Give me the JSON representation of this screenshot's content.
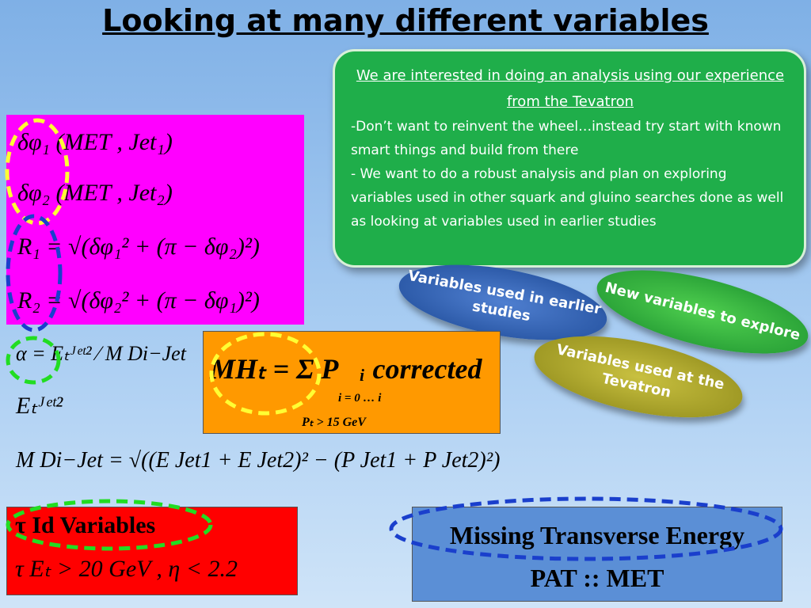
{
  "title": "Looking at many different variables",
  "info_box": {
    "heading": "We are interested in doing an analysis using our experience from the Tevatron",
    "points": [
      "-Don’t want to reinvent the wheel…instead try start with known smart things and build from there",
      "- We want to do a robust analysis and plan on exploring variables used in other squark and gluino searches done as well as looking at variables used in earlier studies"
    ]
  },
  "bubbles": [
    "Variables used in earlier studies",
    "New variables to explore",
    "Variables used at the Tevatron"
  ],
  "angle_formulas": [
    "δφ₁ (MET , Jet₁)",
    "δφ₂ (MET , Jet₂)",
    "R₁ = √(δφ₁² + (π − δφ₂)²)",
    "R₂ = √(δφ₂² + (π − δφ₁)²)"
  ],
  "alpha_formula": "α = Eₜᴶᵉᵗ² ⁄ M Di−Jet",
  "et_formula": "Eₜᴶᵉᵗ²",
  "mht": {
    "formula": "MHₜ = Σ P⃗ᵢ corrected",
    "sum_limits": "i = 0 … i",
    "condition": "Pₜ > 15 GeV"
  },
  "mass_formula": "M Di−Jet = √((E Jet1 + E Jet2)² − (P Jet1 + P Jet2)²)",
  "tau_box": {
    "title": "τ Id Variables",
    "cut": "τ Eₜ > 20 GeV , η < 2.2"
  },
  "met_box": {
    "lines": [
      "Missing Transverse Energy",
      "PAT :: MET"
    ]
  }
}
